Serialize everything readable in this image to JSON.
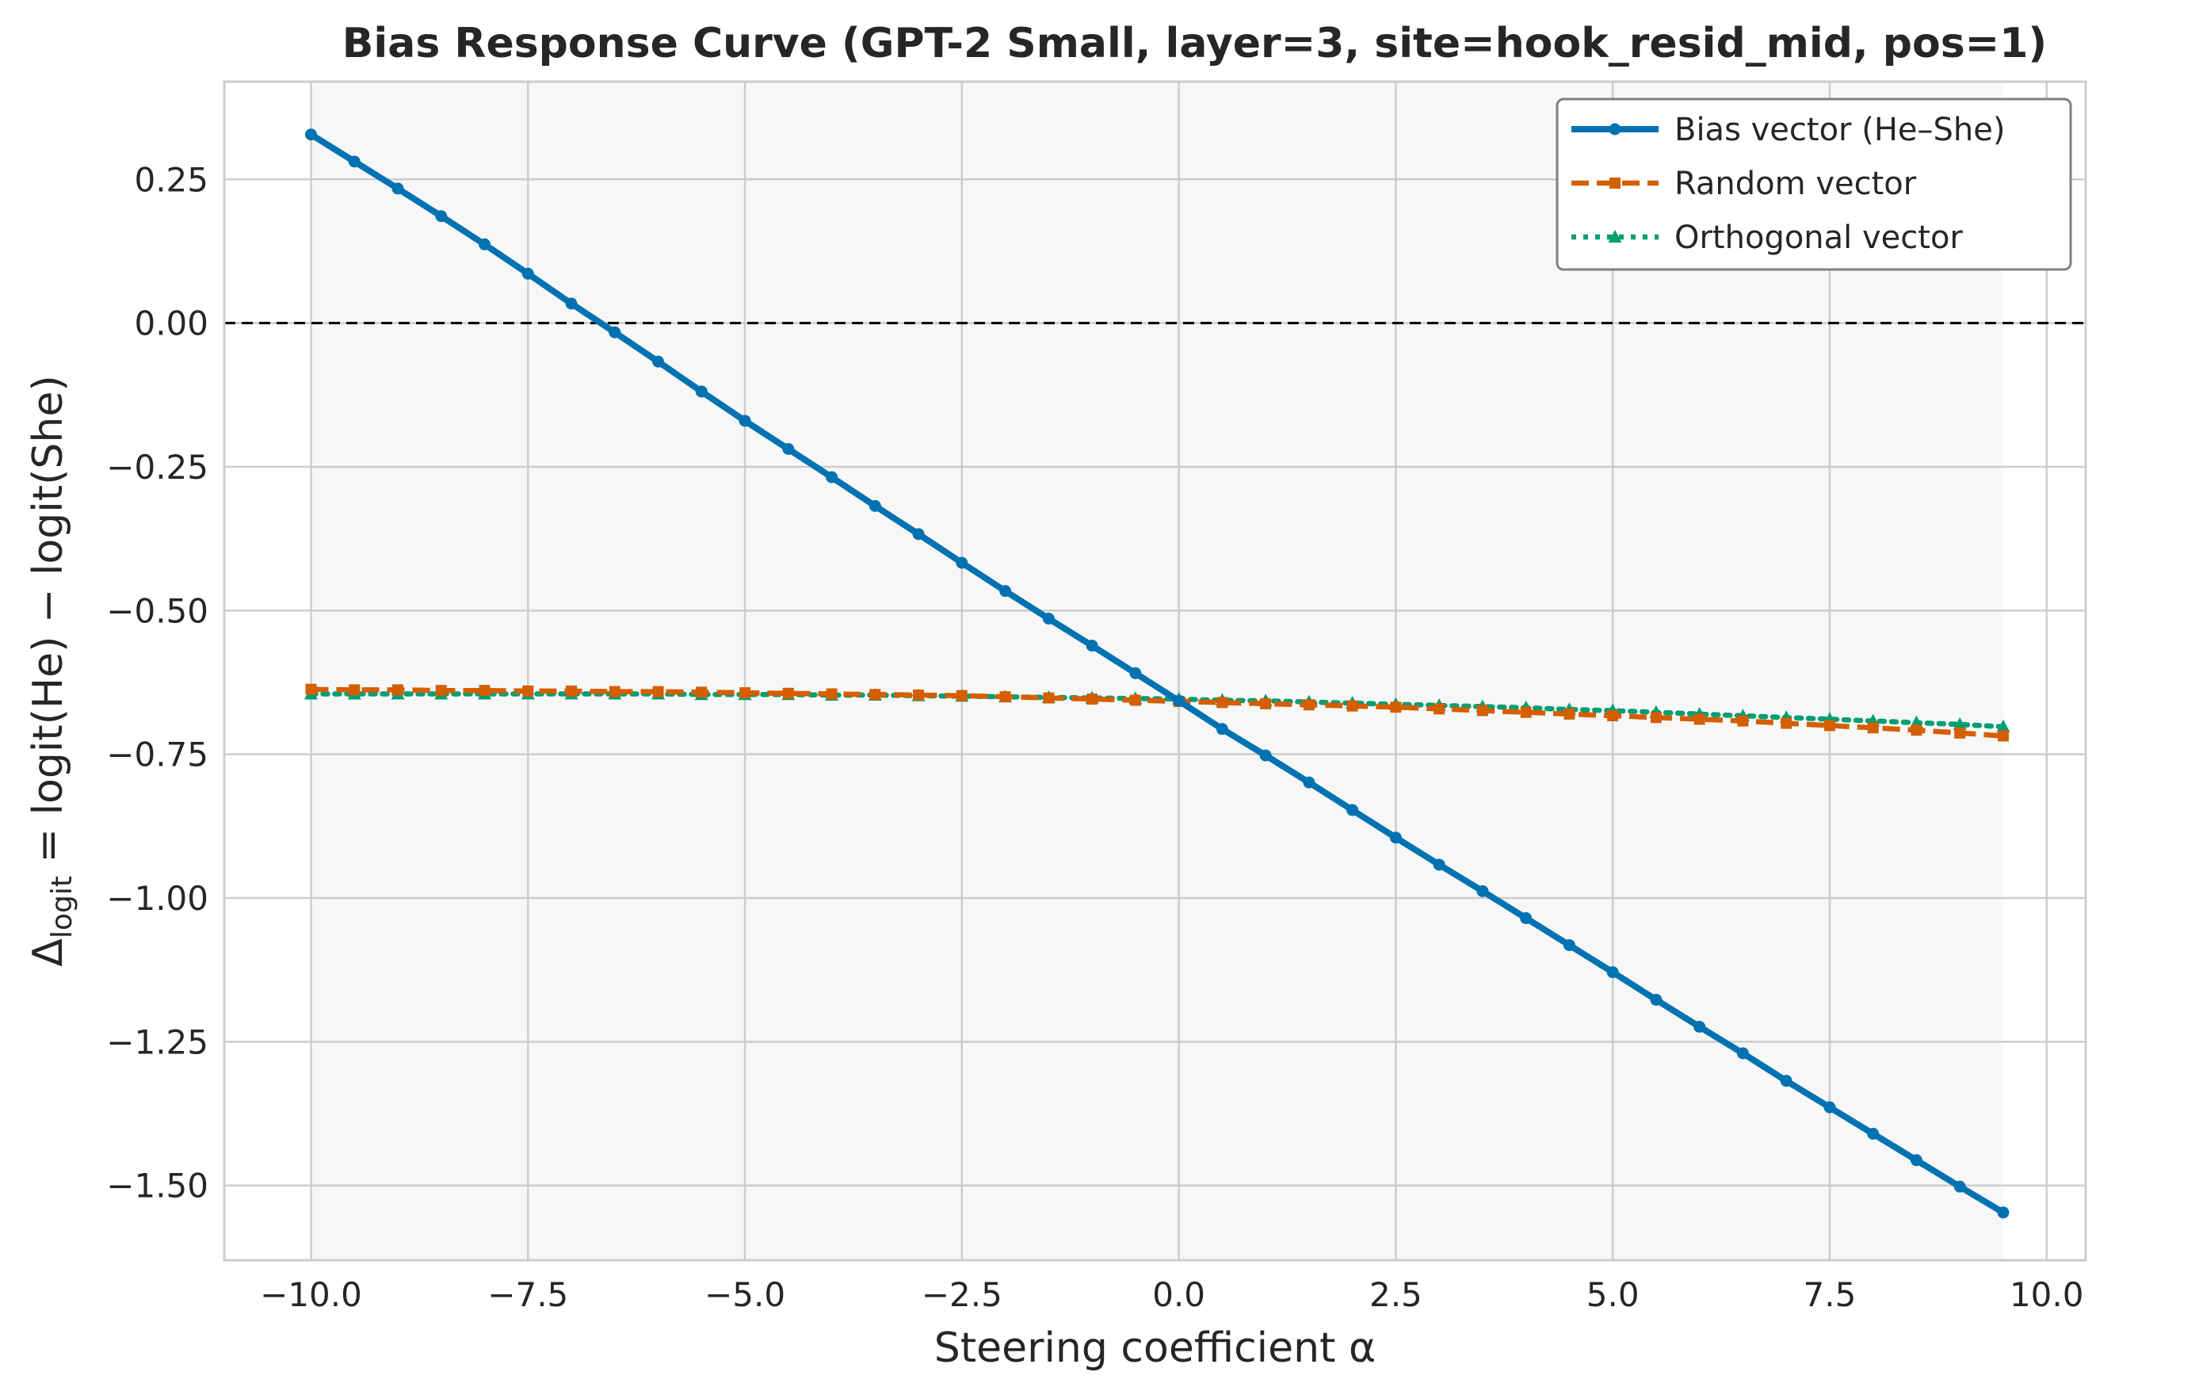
{
  "chart_data": {
    "type": "line",
    "title": "Bias Response Curve (GPT-2 Small, layer=3, site=hook_resid_mid, pos=1)",
    "xlabel": "Steering coefficient α",
    "ylabel": {
      "prefix": "Δ",
      "subscript": "logit",
      "suffix": " = logit(He) − logit(She)"
    },
    "xlim": [
      -11.0,
      10.45
    ],
    "ylim": [
      -1.63,
      0.42
    ],
    "x_ticks": [
      -10.0,
      -7.5,
      -5.0,
      -2.5,
      0.0,
      2.5,
      5.0,
      7.5,
      10.0
    ],
    "x_tick_labels": [
      "−10.0",
      "−7.5",
      "−5.0",
      "−2.5",
      "0.0",
      "2.5",
      "5.0",
      "7.5",
      "10.0"
    ],
    "y_ticks": [
      0.25,
      0.0,
      -0.25,
      -0.5,
      -0.75,
      -1.0,
      -1.25,
      -1.5
    ],
    "y_tick_labels": [
      "0.25",
      "0.00",
      "−0.25",
      "−0.50",
      "−0.75",
      "−1.00",
      "−1.25",
      "−1.50"
    ],
    "grid": true,
    "legend_position": "upper-right",
    "reference_line": {
      "y": 0.0,
      "style": "dashed",
      "color": "#000000"
    },
    "shaded_region": {
      "x": [
        -10.0,
        9.5
      ],
      "color": "#f7f7f7"
    },
    "x": [
      -10.0,
      -9.5,
      -9.0,
      -8.5,
      -8.0,
      -7.5,
      -7.0,
      -6.5,
      -6.0,
      -5.5,
      -5.0,
      -4.5,
      -4.0,
      -3.5,
      -3.0,
      -2.5,
      -2.0,
      -1.5,
      -1.0,
      -0.5,
      0.0,
      0.5,
      1.0,
      1.5,
      2.0,
      2.5,
      3.0,
      3.5,
      4.0,
      4.5,
      5.0,
      5.5,
      6.0,
      6.5,
      7.0,
      7.5,
      8.0,
      8.5,
      9.0,
      9.5
    ],
    "series": [
      {
        "name": "Bias vector (He–She)",
        "color": "#0072b2",
        "line_style": "solid",
        "marker": "circle",
        "values": [
          0.328,
          0.281,
          0.234,
          0.186,
          0.137,
          0.086,
          0.034,
          -0.016,
          -0.067,
          -0.119,
          -0.17,
          -0.219,
          -0.268,
          -0.318,
          -0.367,
          -0.417,
          -0.466,
          -0.514,
          -0.561,
          -0.609,
          -0.657,
          -0.706,
          -0.752,
          -0.799,
          -0.847,
          -0.895,
          -0.942,
          -0.988,
          -1.035,
          -1.082,
          -1.129,
          -1.177,
          -1.224,
          -1.27,
          -1.318,
          -1.364,
          -1.41,
          -1.456,
          -1.502,
          -1.547
        ]
      },
      {
        "name": "Random vector",
        "color": "#d55e00",
        "line_style": "dashed",
        "marker": "square",
        "values": [
          -0.637,
          -0.638,
          -0.638,
          -0.639,
          -0.639,
          -0.64,
          -0.64,
          -0.641,
          -0.641,
          -0.642,
          -0.643,
          -0.644,
          -0.645,
          -0.646,
          -0.647,
          -0.648,
          -0.65,
          -0.652,
          -0.654,
          -0.656,
          -0.658,
          -0.66,
          -0.662,
          -0.664,
          -0.666,
          -0.668,
          -0.671,
          -0.674,
          -0.677,
          -0.68,
          -0.683,
          -0.686,
          -0.689,
          -0.692,
          -0.696,
          -0.7,
          -0.704,
          -0.708,
          -0.713,
          -0.718
        ]
      },
      {
        "name": "Orthogonal vector",
        "color": "#009e73",
        "line_style": "dotted",
        "marker": "triangle",
        "values": [
          -0.645,
          -0.645,
          -0.645,
          -0.645,
          -0.645,
          -0.645,
          -0.645,
          -0.645,
          -0.645,
          -0.646,
          -0.646,
          -0.646,
          -0.647,
          -0.647,
          -0.648,
          -0.649,
          -0.65,
          -0.651,
          -0.652,
          -0.653,
          -0.654,
          -0.656,
          -0.657,
          -0.659,
          -0.661,
          -0.663,
          -0.665,
          -0.667,
          -0.669,
          -0.672,
          -0.674,
          -0.677,
          -0.68,
          -0.683,
          -0.686,
          -0.689,
          -0.692,
          -0.695,
          -0.698,
          -0.702
        ]
      }
    ]
  }
}
